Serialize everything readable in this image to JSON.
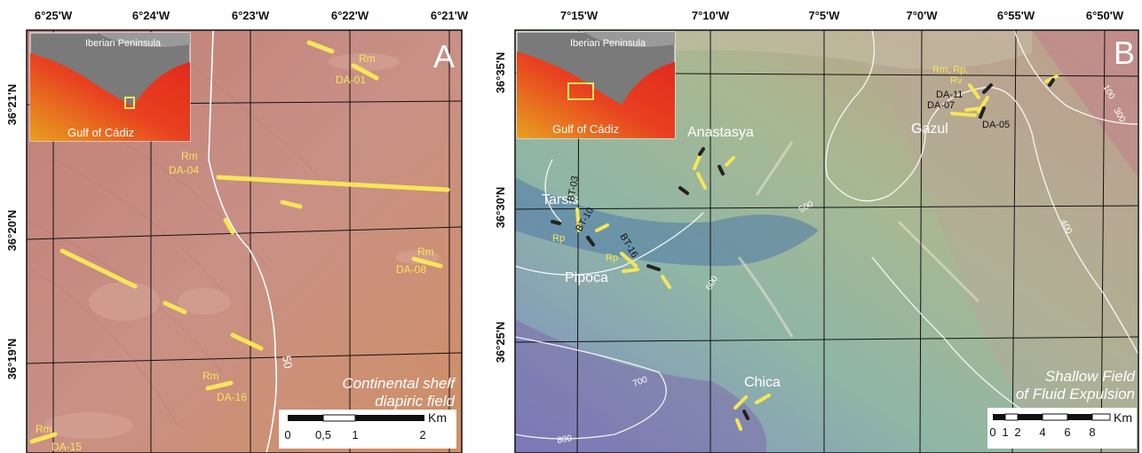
{
  "panelA": {
    "letter": "A",
    "lon_labels": [
      "6°25'W",
      "6°24'W",
      "6°23'W",
      "6°22'W",
      "6°21'W"
    ],
    "lat_labels": [
      "36°21'N",
      "36°20'N",
      "36°19'N"
    ],
    "inset": {
      "region": "Iberian Peninsula",
      "gulf": "Gulf of Cádiz"
    },
    "samples": [
      {
        "code": "DA-01",
        "type": "Rm"
      },
      {
        "code": "DA-04",
        "type": "Rm"
      },
      {
        "code": "DA-08",
        "type": "Rm"
      },
      {
        "code": "DA-16",
        "type": "Rm"
      },
      {
        "code": "DA-15",
        "type": "Rm"
      }
    ],
    "contour_label": "50",
    "field_title_line1": "Continental shelf",
    "field_title_line2": "diapiric field",
    "scalebar": {
      "unit": "Km",
      "ticks": [
        "0",
        "0,5",
        "1",
        "2"
      ]
    }
  },
  "panelB": {
    "letter": "B",
    "lon_labels": [
      "7°15'W",
      "7°10'W",
      "7°5'W",
      "7°0'W",
      "6°55'W",
      "6°50'W"
    ],
    "lat_labels": [
      "36°35'N",
      "36°30'N",
      "36°25'N"
    ],
    "inset": {
      "region": "Iberian Peninsula",
      "gulf": "Gulf of Cádiz"
    },
    "volcanoes": [
      "Anastasya",
      "Gazul",
      "Tarsis",
      "Pipoca",
      "Chica"
    ],
    "samples_black": [
      "DA-11",
      "DA-07",
      "DA-05",
      "BT-03",
      "BT-10",
      "BT-16"
    ],
    "rock_labels": [
      "Rm, Rp,",
      "Rv",
      "Rp",
      "Rp"
    ],
    "contour_labels": [
      "100",
      "300",
      "500",
      "600",
      "400",
      "700",
      "800",
      "500"
    ],
    "field_title_line1": "Shallow Field",
    "field_title_line2": "of Fluid Expulsion",
    "scalebar": {
      "unit": "Km",
      "ticks": [
        "0",
        "1",
        "2",
        "4",
        "6",
        "8"
      ]
    }
  },
  "colors": {
    "sample_yellow": "#f5e65a",
    "shelf_fill": "#c98a78",
    "deep_fill": "#8a9ec8"
  }
}
